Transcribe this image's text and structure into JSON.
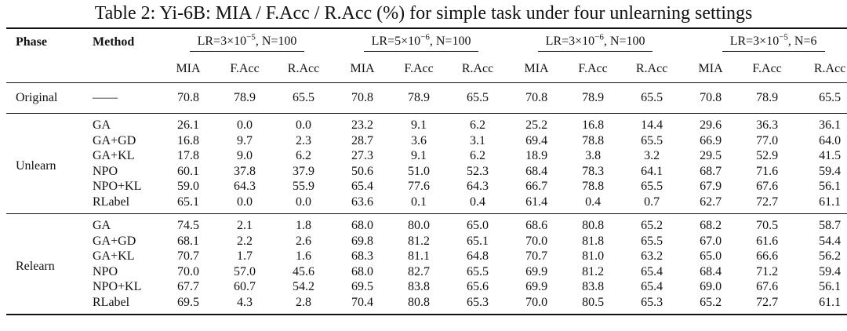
{
  "caption": "Table 2: Yi-6B: MIA / F.Acc / R.Acc (%) for simple task under four unlearning settings",
  "headers": {
    "phase": "Phase",
    "method": "Method",
    "settings": [
      {
        "lr_base": "LR=3×10",
        "lr_exp": "−5",
        "n": ", N=100"
      },
      {
        "lr_base": "LR=5×10",
        "lr_exp": "−6",
        "n": ", N=100"
      },
      {
        "lr_base": "LR=3×10",
        "lr_exp": "−6",
        "n": ", N=100"
      },
      {
        "lr_base": "LR=3×10",
        "lr_exp": "−5",
        "n": ", N=6"
      }
    ],
    "metrics": [
      "MIA",
      "F.Acc",
      "R.Acc"
    ]
  },
  "original": {
    "phase": "Original",
    "method": "——",
    "values": [
      "70.8",
      "78.9",
      "65.5",
      "70.8",
      "78.9",
      "65.5",
      "70.8",
      "78.9",
      "65.5",
      "70.8",
      "78.9",
      "65.5"
    ]
  },
  "unlearn": {
    "phase": "Unlearn",
    "rows": [
      {
        "method": "GA",
        "values": [
          "26.1",
          "0.0",
          "0.0",
          "23.2",
          "9.1",
          "6.2",
          "25.2",
          "16.8",
          "14.4",
          "29.6",
          "36.3",
          "36.1"
        ]
      },
      {
        "method": "GA+GD",
        "values": [
          "16.8",
          "9.7",
          "2.3",
          "28.7",
          "3.6",
          "3.1",
          "69.4",
          "78.8",
          "65.5",
          "66.9",
          "77.0",
          "64.0"
        ]
      },
      {
        "method": "GA+KL",
        "values": [
          "17.8",
          "9.0",
          "6.2",
          "27.3",
          "9.1",
          "6.2",
          "18.9",
          "3.8",
          "3.2",
          "29.5",
          "52.9",
          "41.5"
        ]
      },
      {
        "method": "NPO",
        "values": [
          "60.1",
          "37.8",
          "37.9",
          "50.6",
          "51.0",
          "52.3",
          "68.4",
          "78.3",
          "64.1",
          "68.7",
          "71.6",
          "59.4"
        ]
      },
      {
        "method": "NPO+KL",
        "values": [
          "59.0",
          "64.3",
          "55.9",
          "65.4",
          "77.6",
          "64.3",
          "66.7",
          "78.8",
          "65.5",
          "67.9",
          "67.6",
          "56.1"
        ]
      },
      {
        "method": "RLabel",
        "values": [
          "65.1",
          "0.0",
          "0.0",
          "63.6",
          "0.1",
          "0.4",
          "61.4",
          "0.4",
          "0.7",
          "62.7",
          "72.7",
          "61.1"
        ]
      }
    ]
  },
  "relearn": {
    "phase": "Relearn",
    "rows": [
      {
        "method": "GA",
        "values": [
          "74.5",
          "2.1",
          "1.8",
          "68.0",
          "80.0",
          "65.0",
          "68.6",
          "80.8",
          "65.2",
          "68.2",
          "70.5",
          "58.7"
        ]
      },
      {
        "method": "GA+GD",
        "values": [
          "68.1",
          "2.2",
          "2.6",
          "69.8",
          "81.2",
          "65.1",
          "70.0",
          "81.8",
          "65.5",
          "67.0",
          "61.6",
          "54.4"
        ]
      },
      {
        "method": "GA+KL",
        "values": [
          "70.7",
          "1.7",
          "1.6",
          "68.3",
          "81.1",
          "64.8",
          "70.7",
          "81.0",
          "63.2",
          "65.0",
          "66.6",
          "56.2"
        ]
      },
      {
        "method": "NPO",
        "values": [
          "70.0",
          "57.0",
          "45.6",
          "68.0",
          "82.7",
          "65.5",
          "69.9",
          "81.2",
          "65.4",
          "68.4",
          "71.2",
          "59.4"
        ]
      },
      {
        "method": "NPO+KL",
        "values": [
          "67.7",
          "60.7",
          "54.2",
          "69.5",
          "83.8",
          "65.6",
          "69.9",
          "83.8",
          "65.4",
          "69.0",
          "67.6",
          "56.1"
        ]
      },
      {
        "method": "RLabel",
        "values": [
          "69.5",
          "4.3",
          "2.8",
          "70.4",
          "80.8",
          "65.3",
          "70.0",
          "80.5",
          "65.3",
          "65.2",
          "72.7",
          "61.1"
        ]
      }
    ]
  }
}
